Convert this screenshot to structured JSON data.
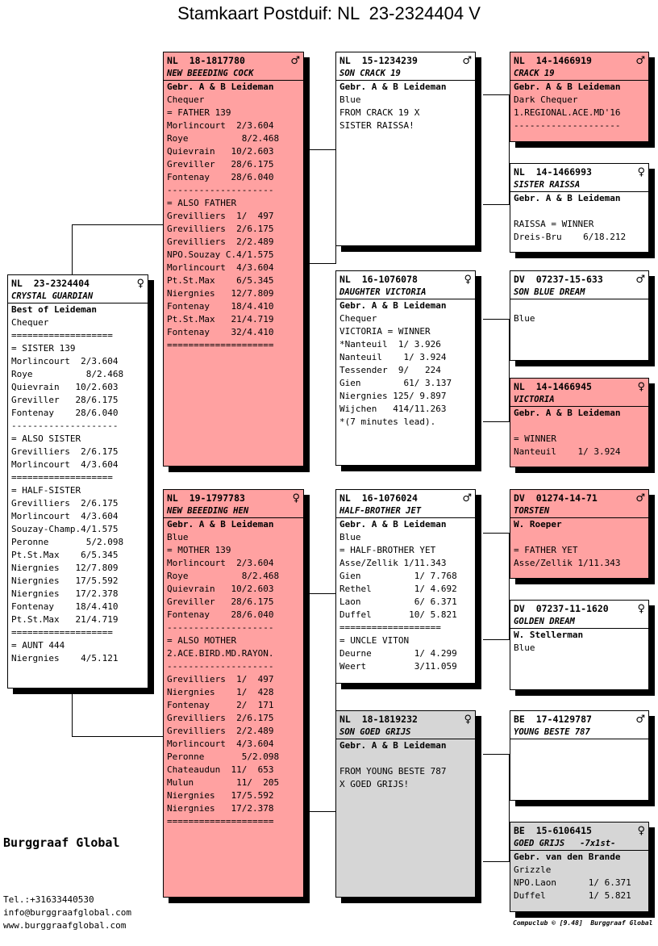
{
  "title": "Stamkaart Postduif: NL  23-2324404 V",
  "brand": "Burggraaf Global",
  "contact": {
    "phone": "Tel.:+31633440530",
    "email": "info@burggraafglobal.com",
    "web": "www.burggraafglobal.com"
  },
  "footer": "Compuclub © [9.48]  Burggraaf Global",
  "colors": {
    "highlight": "#ffa1a1",
    "grey": "#d6d6d6",
    "plain": "#ffffff",
    "shadow": "#000000"
  },
  "cards": {
    "subject": {
      "ring": "NL  23-2324404",
      "sex": "♀",
      "name": "CRYSTAL GUARDIAN",
      "breeder": "Best of Leideman",
      "lines": [
        "Chequer",
        "===================",
        "= SISTER 139",
        "Morlincourt  2/3.604",
        "Roye          8/2.468",
        "Quievrain   10/2.603",
        "Greviller   28/6.175",
        "Fontenay    28/6.040",
        "--------------------",
        "= ALSO SISTER",
        "Grevilliers  2/6.175",
        "Morlincourt  4/3.604",
        "===================",
        "= HALF-SISTER",
        "Grevilliers  2/6.175",
        "Morlincourt  4/3.604",
        "Souzay-Champ.4/1.575",
        "Peronne       5/2.098",
        "Pt.St.Max    6/5.345",
        "Niergnies   12/7.809",
        "Niergnies   17/5.592",
        "Niergnies   17/2.378",
        "Fontenay    18/4.410",
        "Pt.St.Max   21/4.719",
        "===================",
        "= AUNT 444",
        "Niergnies    4/5.121"
      ]
    },
    "father": {
      "ring": "NL  18-1817780",
      "sex": "♂",
      "name": "NEW BEEEDING COCK",
      "breeder": "Gebr. A & B Leideman",
      "lines": [
        "Chequer",
        "= FATHER 139",
        "Morlincourt  2/3.604",
        "Roye          8/2.468",
        "Quievrain   10/2.603",
        "Greviller   28/6.175",
        "Fontenay    28/6.040",
        "--------------------",
        "= ALSO FATHER",
        "Grevilliers  1/  497",
        "Grevilliers  2/6.175",
        "Grevilliers  2/2.489",
        "NPO.Souzay C.4/1.575",
        "Morlincourt  4/3.604",
        "Pt.St.Max    6/5.345",
        "Niergnies   12/7.809",
        "Fontenay    18/4.410",
        "Pt.St.Max   21/4.719",
        "Fontenay    32/4.410",
        "===================="
      ]
    },
    "mother": {
      "ring": "NL  19-1797783",
      "sex": "♀",
      "name": "NEW BEEEDING HEN",
      "breeder": "Gebr. A & B Leideman",
      "lines": [
        "Blue",
        "= MOTHER 139",
        "Morlincourt  2/3.604",
        "Roye          8/2.468",
        "Quievrain   10/2.603",
        "Greviller   28/6.175",
        "Fontenay    28/6.040",
        "--------------------",
        "= ALSO MOTHER",
        "2.ACE.BIRD.MD.RAYON.",
        "--------------------",
        "Grevilliers  1/  497",
        "Niergnies    1/  428",
        "Fontenay     2/  171",
        "Grevilliers  2/6.175",
        "Grevilliers  2/2.489",
        "Morlincourt  4/3.604",
        "Peronne       5/2.098",
        "Chateaudun  11/  653",
        "Mulun        11/  205",
        "Niergnies   17/5.592",
        "Niergnies   17/2.378",
        "===================="
      ]
    },
    "ff": {
      "ring": "NL  15-1234239",
      "sex": "♂",
      "name": "SON CRACK 19",
      "breeder": "Gebr. A & B Leideman",
      "lines": [
        "Blue",
        "FROM CRACK 19 X",
        "SISTER RAISSA!"
      ]
    },
    "fm": {
      "ring": "NL  16-1076078",
      "sex": "♀",
      "name": "DAUGHTER VICTORIA",
      "breeder": "Gebr. A & B Leideman",
      "lines": [
        "Chequer",
        "VICTORIA = WINNER",
        "*Nanteuil  1/ 3.926",
        "Nanteuil    1/ 3.924",
        "Tessender  9/   224",
        "Gien        61/ 3.137",
        "Niergnies 125/ 9.897",
        "Wijchen   414/11.263",
        "*(7 minutes lead)."
      ]
    },
    "mf": {
      "ring": "NL  16-1076024",
      "sex": "♂",
      "name": "HALF-BROTHER JET",
      "breeder": "Gebr. A & B Leideman",
      "lines": [
        "Blue",
        "= HALF-BROTHER YET",
        "Asse/Zellik 1/11.343",
        "Gien          1/ 7.768",
        "Rethel        1/ 4.692",
        "Laon          6/ 6.371",
        "Duffel       10/ 5.821",
        "===================",
        "= UNCLE VITON",
        "Deurne        1/ 4.299",
        "Weert         3/11.059"
      ]
    },
    "mm": {
      "ring": "NL  18-1819232",
      "sex": "♀",
      "name": "SON GOED GRIJS",
      "breeder": "Gebr. A & B Leideman",
      "lines": [
        "",
        "FROM YOUNG BESTE 787",
        "X GOED GRIJS!"
      ]
    },
    "fff": {
      "ring": "NL  14-1466919",
      "sex": "♂",
      "name": "CRACK 19",
      "breeder": "Gebr. A & B Leideman",
      "lines": [
        "Dark Chequer",
        "1.REGIONAL.ACE.MD'16",
        "--------------------"
      ]
    },
    "ffm": {
      "ring": "NL  14-1466993",
      "sex": "♀",
      "name": "SISTER RAISSA",
      "breeder": "Gebr. A & B Leideman",
      "lines": [
        "",
        "RAISSA = WINNER",
        "Dreis-Bru    6/18.212"
      ]
    },
    "fmf": {
      "ring": "DV  07237-15-633",
      "sex": "♂",
      "name": "SON BLUE DREAM",
      "breeder": "",
      "lines": [
        "Blue"
      ]
    },
    "fmm": {
      "ring": "NL  14-1466945",
      "sex": "♀",
      "name": "VICTORIA",
      "breeder": "Gebr. A & B Leideman",
      "lines": [
        "",
        "= WINNER",
        "Nanteuil    1/ 3.924"
      ]
    },
    "mff": {
      "ring": "DV  01274-14-71",
      "sex": "♂",
      "name": "TORSTEN",
      "breeder": "W. Roeper",
      "lines": [
        "",
        "= FATHER YET",
        "Asse/Zellik 1/11.343"
      ]
    },
    "mfm": {
      "ring": "DV  07237-11-1620",
      "sex": "♀",
      "name": "GOLDEN DREAM",
      "breeder": "W. Stellerman",
      "lines": [
        "Blue"
      ]
    },
    "mmf": {
      "ring": "BE  17-4129787",
      "sex": "♂",
      "name": "YOUNG BESTE 787",
      "breeder": "",
      "lines": []
    },
    "mmm": {
      "ring": "BE  15-6106415",
      "sex": "♀",
      "name": "GOED GRIJS   -7x1st-",
      "breeder": "Gebr. van den Brande",
      "lines": [
        "Grizzle",
        "NPO.Laon      1/ 6.371",
        "Duffel        1/ 5.821"
      ]
    }
  }
}
